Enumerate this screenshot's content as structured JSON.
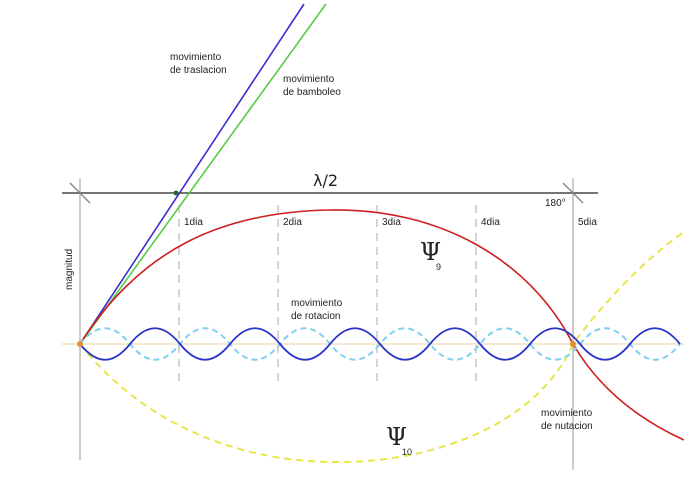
{
  "labels": {
    "translation_line1": "movimiento",
    "translation_line2": "de traslacion",
    "wobble_line1": "movimiento",
    "wobble_line2": "de bamboleo",
    "half_wavelength": "λ/2",
    "degrees_180": "180°",
    "magnitude": "magnitud",
    "rotation_line1": "movimiento",
    "rotation_line2": "de rotacion",
    "nutation_line1": "movimiento",
    "nutation_line2": "de nutacion"
  },
  "day_ticks": [
    "1dia",
    "2dia",
    "3dia",
    "4dia",
    "5dia"
  ],
  "psi_labels": [
    {
      "symbol": "Ψ",
      "sub": "9"
    },
    {
      "symbol": "Ψ",
      "sub": "10"
    }
  ],
  "colors": {
    "translation_line": "#3a2fd0",
    "wobble_line": "#55cc44",
    "psi9_curve": "#cc1f1f",
    "psi10_curve": "#e6e64a",
    "rotation_solid": "#2a35c8",
    "rotation_dashed": "#7fd0ee",
    "axis": "#222222",
    "tick_dashed": "#999999",
    "baseline": "#e8d0a0"
  }
}
